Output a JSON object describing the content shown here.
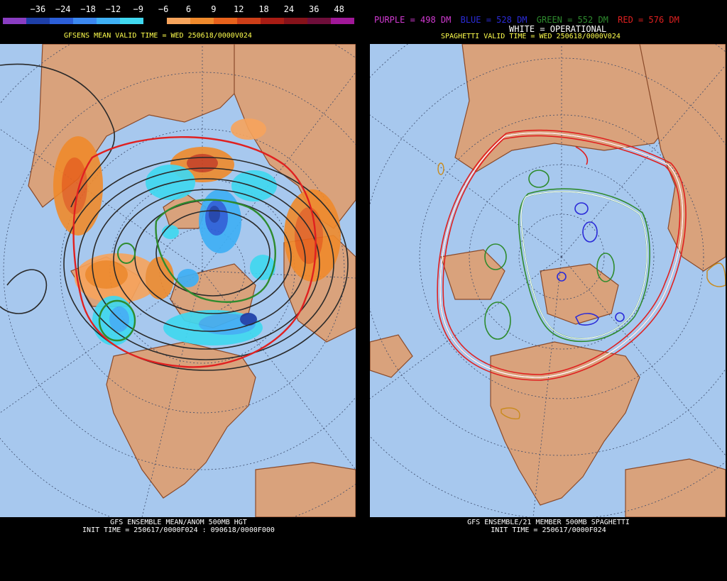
{
  "colorbar": {
    "ticks": [
      "−36",
      "−24",
      "−18",
      "−12",
      "−9",
      "−6",
      "6",
      "9",
      "12",
      "18",
      "24",
      "36",
      "48"
    ],
    "colors": [
      "#8a3dc2",
      "#1e3fa8",
      "#2c5fd8",
      "#3c88f0",
      "#3fb0f5",
      "#40d8f0",
      "#000000",
      "#f7a45c",
      "#f08a2c",
      "#e8621c",
      "#cc3e18",
      "#a81c14",
      "#86121a",
      "#6e0e3a",
      "#a01898"
    ]
  },
  "left": {
    "valid_title": "GFSENS MEAN VALID TIME = WED 250618/0000V024",
    "caption_line1": "GFS ENSEMBLE MEAN/ANOM 500MB HGT",
    "caption_line2": "INIT TIME = 250617/0000F024 : 090618/0000F000"
  },
  "right": {
    "legend": [
      {
        "text": "PURPLE = 498 DM",
        "color": "#d23ad2"
      },
      {
        "text": "BLUE = 528 DM",
        "color": "#2b2bd8"
      },
      {
        "text": "GREEN = 552 DM",
        "color": "#2e8b2e"
      },
      {
        "text": "RED = 576 DM",
        "color": "#e02020"
      }
    ],
    "operational": "WHITE = OPERATIONAL",
    "valid_title": "SPAGHETTI VALID TIME = WED 250618/0000V024",
    "caption_line1": "GFS ENSEMBLE/21 MEMBER 500MB SPAGHETTI",
    "caption_line2": "INIT TIME = 250617/0000F024"
  },
  "colors": {
    "ocean": "#a7c8ee",
    "land": "#d9a27c",
    "border": "#8a4a2a"
  }
}
